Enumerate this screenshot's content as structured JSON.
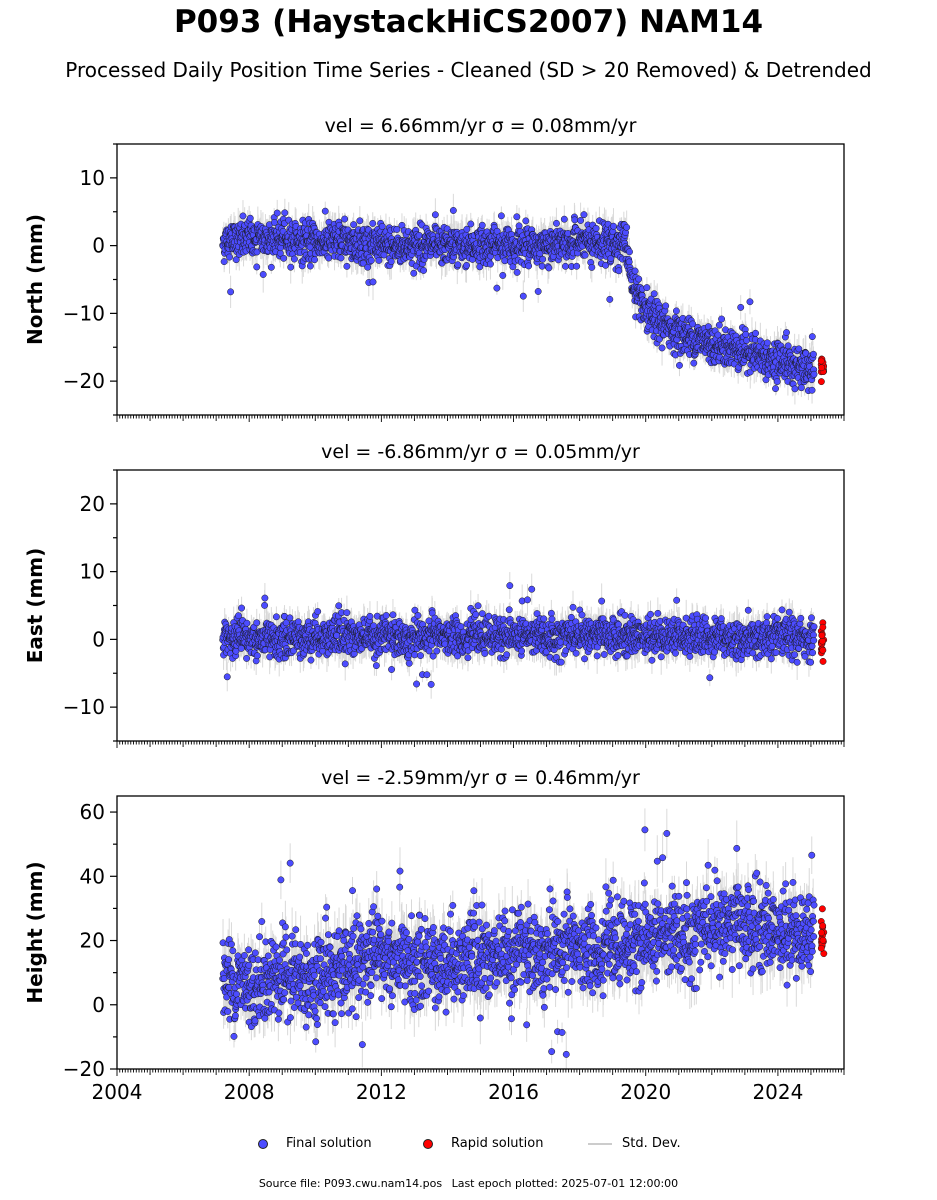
{
  "title": "P093 (HaystackHiCS2007) NAM14",
  "subtitle": "Processed Daily Position Time Series - Cleaned (SD > 20 Removed) & Detrended",
  "legend": {
    "final": "Final solution",
    "rapid": "Rapid solution",
    "std": "Std. Dev."
  },
  "footer": {
    "source": "Source file: P093.cwu.nam14.pos",
    "last_epoch": "Last epoch plotted: 2025-07-01 12:00:00"
  },
  "colors": {
    "final": "#4c4cff",
    "rapid": "#ff0000",
    "std": "#bbbbbb"
  },
  "chart_data": [
    {
      "type": "scatter",
      "title": "vel = 6.66mm/yr   σ = 0.08mm/yr",
      "ylabel": "North (mm)",
      "xlim": [
        2004,
        2026
      ],
      "ylim": [
        -25,
        15
      ],
      "yticks": [
        10,
        0,
        -10,
        -20
      ],
      "xticks": [
        2004,
        2008,
        2012,
        2016,
        2020,
        2024
      ],
      "show_xticklabels": false,
      "series": [
        {
          "name": "Final solution",
          "x": [
            2007.2,
            2008.0,
            2009.0,
            2010.0,
            2011.0,
            2012.0,
            2013.0,
            2014.0,
            2015.0,
            2016.0,
            2017.0,
            2018.0,
            2019.0,
            2019.4,
            2019.6,
            2020.0,
            2021.0,
            2022.0,
            2023.0,
            2024.0,
            2025.1
          ],
          "values": [
            0.5,
            1.0,
            1.0,
            0.5,
            0.5,
            0.0,
            0.0,
            0.0,
            0.0,
            0.0,
            0.0,
            0.5,
            0.5,
            0.5,
            -6.0,
            -10.0,
            -13.0,
            -14.5,
            -15.5,
            -17.0,
            -18.5
          ]
        },
        {
          "name": "Rapid solution",
          "x": [
            2025.35
          ],
          "values": [
            -18.0
          ]
        }
      ]
    },
    {
      "type": "scatter",
      "title": "vel = -6.86mm/yr   σ = 0.05mm/yr",
      "ylabel": "East (mm)",
      "xlim": [
        2004,
        2026
      ],
      "ylim": [
        -15,
        25
      ],
      "yticks": [
        20,
        10,
        0,
        -10
      ],
      "xticks": [
        2004,
        2008,
        2012,
        2016,
        2020,
        2024
      ],
      "show_xticklabels": false,
      "series": [
        {
          "name": "Final solution",
          "x": [
            2007.2,
            2008.0,
            2009.0,
            2010.0,
            2011.0,
            2012.0,
            2013.0,
            2014.0,
            2015.0,
            2016.0,
            2017.0,
            2018.0,
            2019.0,
            2020.0,
            2021.0,
            2022.0,
            2023.0,
            2024.0,
            2025.1
          ],
          "values": [
            0.0,
            0.0,
            0.0,
            0.5,
            0.5,
            0.5,
            0.0,
            0.5,
            0.5,
            0.5,
            0.5,
            0.5,
            0.5,
            0.5,
            0.5,
            0.5,
            0.0,
            0.5,
            0.0
          ]
        },
        {
          "name": "Rapid solution",
          "x": [
            2025.35
          ],
          "values": [
            0.0
          ]
        }
      ]
    },
    {
      "type": "scatter",
      "title": "vel = -2.59mm/yr   σ = 0.46mm/yr",
      "ylabel": "Height (mm)",
      "xlim": [
        2004,
        2026
      ],
      "ylim": [
        -20,
        65
      ],
      "yticks": [
        60,
        40,
        20,
        0,
        -20
      ],
      "xticks": [
        2004,
        2008,
        2012,
        2016,
        2020,
        2024
      ],
      "show_xticklabels": true,
      "series": [
        {
          "name": "Final solution",
          "x": [
            2007.2,
            2008.0,
            2009.0,
            2010.0,
            2011.0,
            2012.0,
            2013.0,
            2014.0,
            2015.0,
            2016.0,
            2017.0,
            2018.0,
            2019.0,
            2020.0,
            2021.0,
            2022.0,
            2023.0,
            2024.0,
            2025.1
          ],
          "values": [
            8,
            6,
            10,
            8,
            12,
            15,
            12,
            14,
            15,
            16,
            16,
            17,
            18,
            20,
            22,
            24,
            25,
            23,
            22
          ]
        },
        {
          "name": "Rapid solution",
          "x": [
            2025.35
          ],
          "values": [
            22
          ]
        }
      ]
    }
  ]
}
